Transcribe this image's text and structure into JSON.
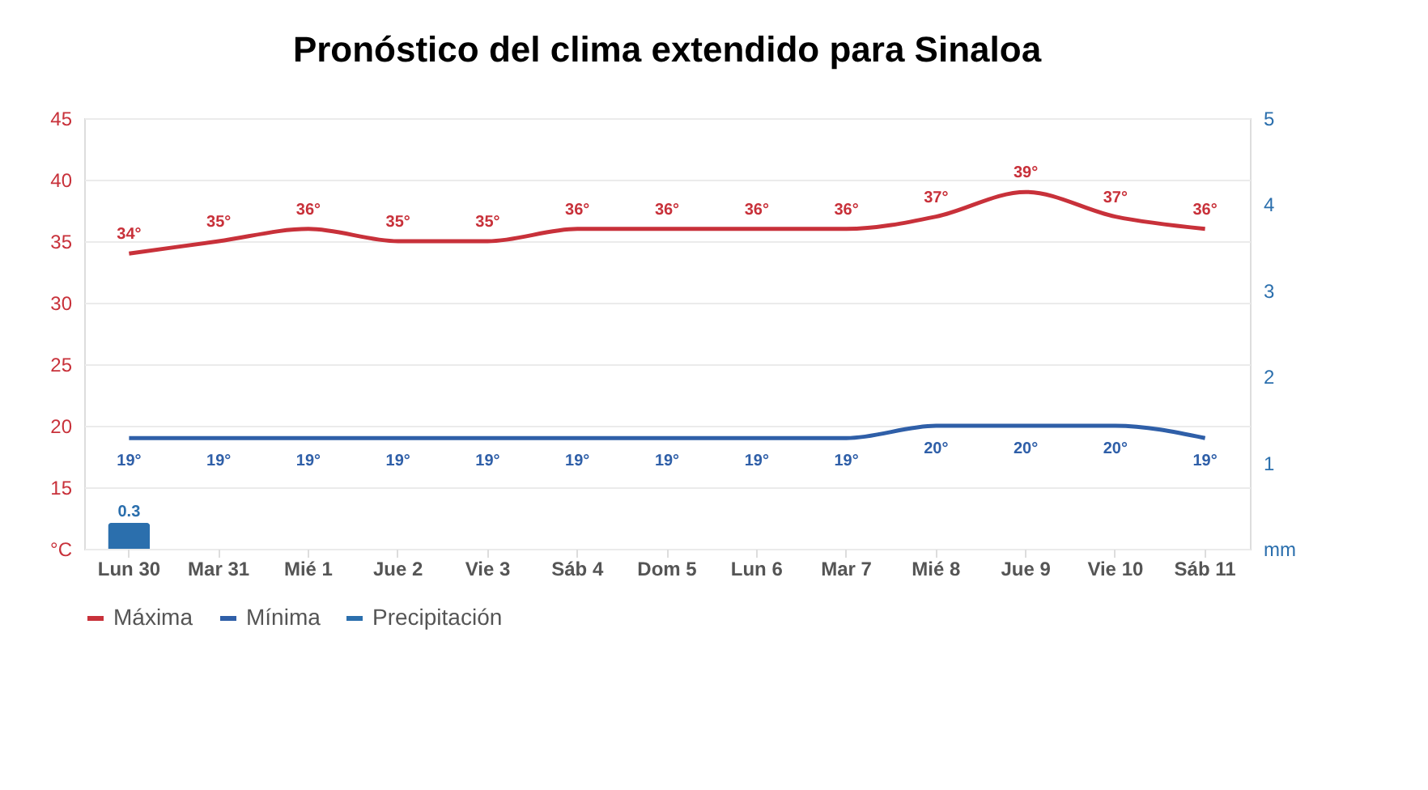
{
  "chart_data": {
    "type": "line",
    "title": "Pronóstico del clima extendido para Sinaloa",
    "categories": [
      "Lun 30",
      "Mar 31",
      "Mié 1",
      "Jue 2",
      "Vie 3",
      "Sáb 4",
      "Dom 5",
      "Lun 6",
      "Mar 7",
      "Mié 8",
      "Jue 9",
      "Vie 10",
      "Sáb 11"
    ],
    "series": [
      {
        "name": "Máxima",
        "color": "#c8313a",
        "values": [
          34,
          35,
          36,
          35,
          35,
          36,
          36,
          36,
          36,
          37,
          39,
          37,
          36
        ],
        "value_labels": [
          "34°",
          "35°",
          "36°",
          "35°",
          "35°",
          "36°",
          "36°",
          "36°",
          "36°",
          "37°",
          "39°",
          "37°",
          "36°"
        ]
      },
      {
        "name": "Mínima",
        "color": "#2f5fa8",
        "values": [
          19,
          19,
          19,
          19,
          19,
          19,
          19,
          19,
          19,
          20,
          20,
          20,
          19
        ],
        "value_labels": [
          "19°",
          "19°",
          "19°",
          "19°",
          "19°",
          "19°",
          "19°",
          "19°",
          "19°",
          "20°",
          "20°",
          "20°",
          "19°"
        ]
      },
      {
        "name": "Precipitación",
        "color": "#2b6fad",
        "type": "bar",
        "axis": "y2",
        "values": [
          0.3,
          null,
          null,
          null,
          null,
          null,
          null,
          null,
          null,
          null,
          null,
          null,
          null
        ],
        "value_labels": [
          "0.3",
          null,
          null,
          null,
          null,
          null,
          null,
          null,
          null,
          null,
          null,
          null,
          null
        ]
      }
    ],
    "ylim": [
      10,
      45
    ],
    "yticks": [
      {
        "value": 10,
        "label": "°C"
      },
      15,
      20,
      25,
      30,
      35,
      40,
      45
    ],
    "y2lim": [
      0,
      5
    ],
    "y2ticks": [
      {
        "value": 0,
        "label": "mm"
      },
      1,
      2,
      3,
      4,
      5
    ],
    "grid": "y",
    "legend": "bottom"
  }
}
